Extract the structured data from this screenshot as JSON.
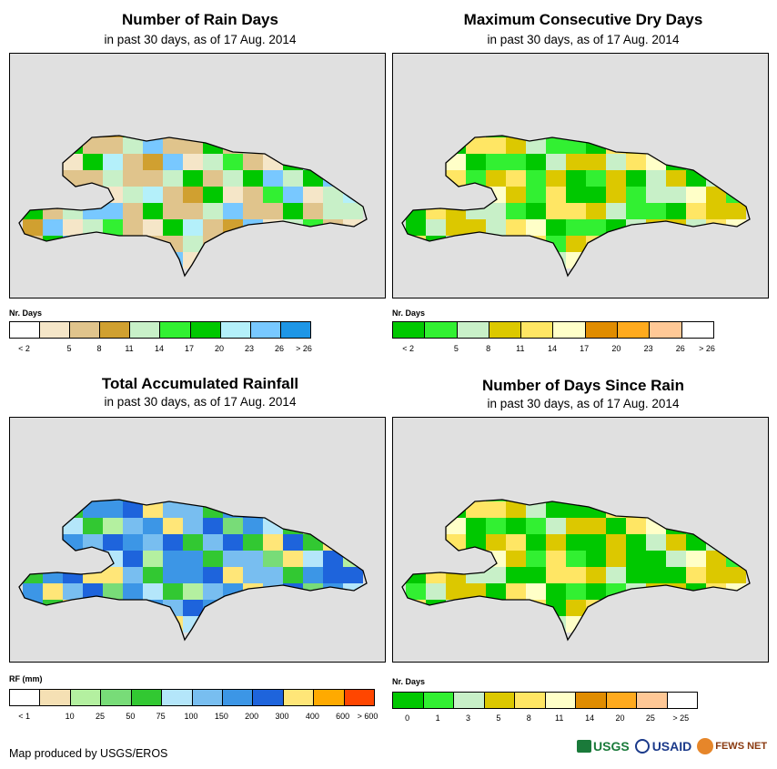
{
  "footer": {
    "text": "Map produced by USGS/EROS"
  },
  "logos": {
    "usgs": "USGS",
    "usaid": "USAID",
    "fews": "FEWS NET"
  },
  "panels": [
    {
      "title": "Number of Rain Days",
      "subtitle": "in past 30 days, as of 17 Aug. 2014",
      "legend_label": "Nr. Days",
      "legend_colors": [
        "#ffffff",
        "#f5e6c8",
        "#e0c48c",
        "#d0a030",
        "#c8f0c8",
        "#32f032",
        "#00c800",
        "#b4f0fa",
        "#78c8ff",
        "#1e96e6"
      ],
      "tick_labels": [
        "< 2",
        "5",
        "8",
        "11",
        "14",
        "17",
        "20",
        "23",
        "26",
        "> 26"
      ],
      "tick_mode": "boundary",
      "cell_colors": [
        "#f5e6c8",
        "#e0c48c",
        "#d0a030",
        "#c8f0c8",
        "#32f032",
        "#00c800",
        "#b4f0fa",
        "#78c8ff",
        "#f5e6c8",
        "#e0c48c"
      ]
    },
    {
      "title": "Maximum Consecutive Dry Days",
      "subtitle": "in past 30 days, as of 17 Aug. 2014",
      "legend_label": "Nr. Days",
      "legend_colors": [
        "#00c800",
        "#32f032",
        "#c8f0c8",
        "#dcc800",
        "#ffe664",
        "#ffffc8",
        "#e08c00",
        "#ffaa1e",
        "#ffc896",
        "#ffffff"
      ],
      "tick_labels": [
        "< 2",
        "5",
        "8",
        "11",
        "14",
        "17",
        "20",
        "23",
        "26",
        "> 26"
      ],
      "tick_mode": "boundary",
      "cell_colors": [
        "#00c800",
        "#32f032",
        "#c8f0c8",
        "#dcc800",
        "#ffe664",
        "#ffffc8",
        "#32f032",
        "#00c800",
        "#dcc800",
        "#c8f0c8"
      ]
    },
    {
      "title": "Total Accumulated Rainfall",
      "subtitle": "in past 30 days, as of 17 Aug. 2014",
      "legend_label": "RF (mm)",
      "legend_colors": [
        "#ffffff",
        "#f5e0b4",
        "#b4f0a0",
        "#78dc78",
        "#32c832",
        "#b4e6fa",
        "#78bef0",
        "#3c96e6",
        "#1e64dc",
        "#ffe678",
        "#ffaa00",
        "#ff4600"
      ],
      "tick_labels": [
        "< 1",
        "10",
        "25",
        "50",
        "75",
        "100",
        "150",
        "200",
        "300",
        "400",
        "600",
        "> 600"
      ],
      "tick_mode": "boundary",
      "cell_colors": [
        "#b4e6fa",
        "#78bef0",
        "#3c96e6",
        "#1e64dc",
        "#78dc78",
        "#32c832",
        "#b4f0a0",
        "#ffe678",
        "#78bef0",
        "#3c96e6"
      ]
    },
    {
      "title": "Number of Days Since Rain",
      "subtitle": "in past 30 days, as of 17 Aug. 2014",
      "legend_label": "Nr. Days",
      "legend_colors": [
        "#00c800",
        "#32f032",
        "#c8f0c8",
        "#dcc800",
        "#ffe664",
        "#ffffc8",
        "#e08c00",
        "#ffaa1e",
        "#ffc896",
        "#ffffff"
      ],
      "tick_labels": [
        "0",
        "1",
        "3",
        "5",
        "8",
        "11",
        "14",
        "20",
        "25",
        "> 25"
      ],
      "tick_mode": "center",
      "cell_colors": [
        "#00c800",
        "#32f032",
        "#c8f0c8",
        "#dcc800",
        "#ffe664",
        "#ffffc8",
        "#00c800",
        "#32f032",
        "#dcc800",
        "#00c800"
      ]
    }
  ]
}
